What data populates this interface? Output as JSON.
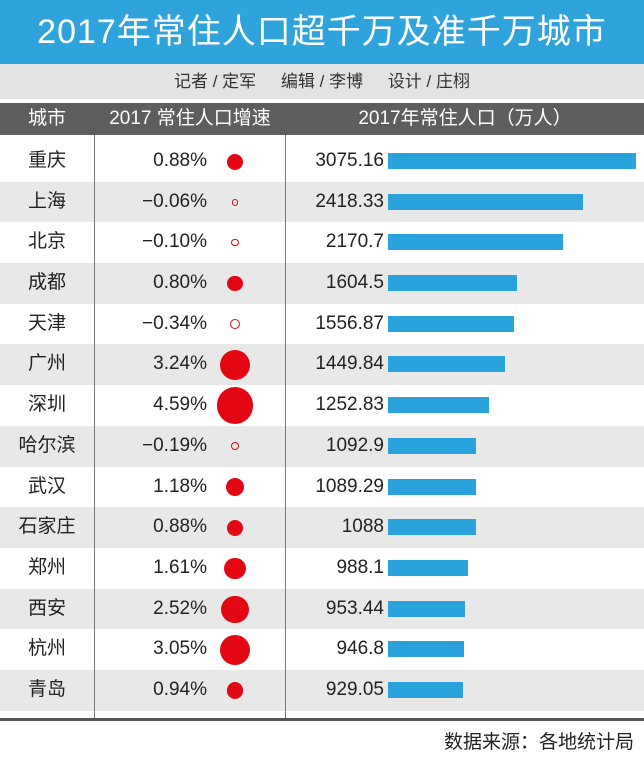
{
  "title": "2017年常住人口超千万及准千万城市",
  "credits": [
    "记者 / 定军",
    "编辑 / 李博",
    "设计 / 庄栩"
  ],
  "source": "数据来源：各地统计局",
  "colors": {
    "title_bg": "#2ea3dc",
    "bar": "#2aa3dc",
    "dot": "#e30613",
    "header_bg": "#5e5e5e"
  },
  "chart_data": {
    "type": "table",
    "columns": [
      "城市",
      "2017 常住人口增速",
      "2017年常住人口（万人）"
    ],
    "categories": [
      "重庆",
      "上海",
      "北京",
      "成都",
      "天津",
      "广州",
      "深圳",
      "哈尔滨",
      "武汉",
      "石家庄",
      "郑州",
      "西安",
      "杭州",
      "青岛"
    ],
    "growth_rate": [
      "0.88%",
      "−0.06%",
      "−0.10%",
      "0.80%",
      "−0.34%",
      "3.24%",
      "4.59%",
      "−0.19%",
      "1.18%",
      "0.88%",
      "1.61%",
      "2.52%",
      "3.05%",
      "0.94%"
    ],
    "growth_values": [
      0.88,
      -0.06,
      -0.1,
      0.8,
      -0.34,
      3.24,
      4.59,
      -0.19,
      1.18,
      0.88,
      1.61,
      2.52,
      3.05,
      0.94
    ],
    "population": [
      "3075.16",
      "2418.33",
      "2170.7",
      "1604.5",
      "1556.87",
      "1449.84",
      "1252.83",
      "1092.9",
      "1089.29",
      "1088",
      "988.1",
      "953.44",
      "946.8",
      "929.05"
    ],
    "population_values": [
      3075.16,
      2418.33,
      2170.7,
      1604.5,
      1556.87,
      1449.84,
      1252.83,
      1092.9,
      1089.29,
      1088,
      988.1,
      953.44,
      946.8,
      929.05
    ]
  }
}
